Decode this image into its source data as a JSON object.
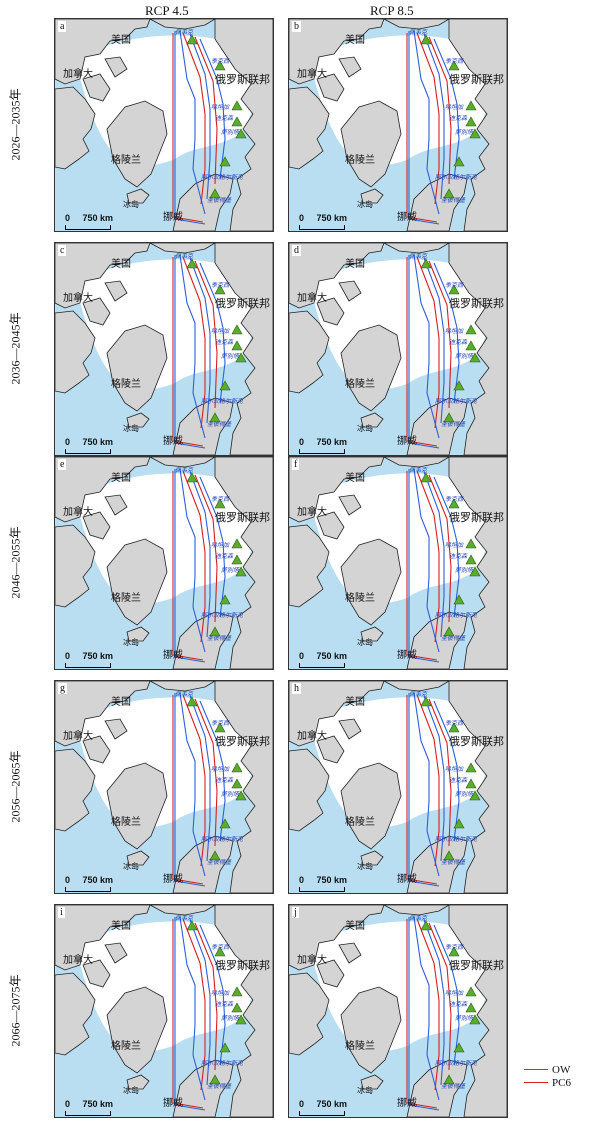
{
  "columns": [
    "RCP 4.5",
    "RCP 8.5"
  ],
  "periods": [
    "2026—2035年",
    "2036—2045年",
    "2046—2055年",
    "2056—2065年",
    "2066—2075年"
  ],
  "panel_letters": [
    "a",
    "b",
    "c",
    "d",
    "e",
    "f",
    "g",
    "h",
    "i",
    "j"
  ],
  "region_labels": {
    "usa": "美国",
    "canada": "加拿大",
    "russia": "俄罗斯联邦",
    "greenland": "格陵兰",
    "iceland": "冰岛",
    "norway": "挪威"
  },
  "ports": [
    "佩韦克",
    "季克西",
    "哈坦加",
    "迪克森",
    "萨别塔",
    "阿尔汉格尔斯克",
    "圣彼得堡"
  ],
  "scale_label": "750 km",
  "scale_zero": "0",
  "legend": [
    {
      "label": "OW",
      "color": "#2d5fd6"
    },
    {
      "label": "PC6",
      "color": "#d42020"
    }
  ],
  "colors": {
    "ocean": "#b9def2",
    "ice": "#ffffff",
    "land": "#d4d4d4",
    "port_marker": "#5aad2a"
  }
}
